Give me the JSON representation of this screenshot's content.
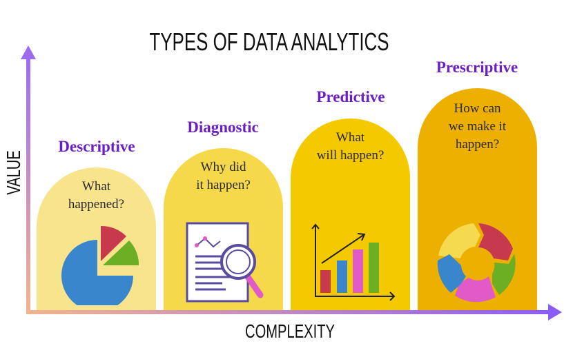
{
  "title": "TYPES OF DATA ANALYTICS",
  "y_axis_label": "VALUE",
  "x_axis_label": "COMPLEXITY",
  "colors": {
    "heading": "#6a1fc2",
    "axis_start": "#f2b48e",
    "axis_end": "#8b5cf6"
  },
  "stages": [
    {
      "name": "Descriptive",
      "question_lines": [
        "What",
        "happened?"
      ],
      "icon": "pie-chart-icon",
      "color": "#f8e48c"
    },
    {
      "name": "Diagnostic",
      "question_lines": [
        "Why did",
        "it happen?"
      ],
      "icon": "document-magnifier-icon",
      "color": "#f6d94a"
    },
    {
      "name": "Predictive",
      "question_lines": [
        "What",
        "will happen?"
      ],
      "icon": "bar-chart-trend-icon",
      "color": "#f4c900"
    },
    {
      "name": "Prescriptive",
      "question_lines": [
        "How can",
        "we make it",
        "happen?"
      ],
      "icon": "cycle-icon",
      "color": "#eeb000"
    }
  ]
}
